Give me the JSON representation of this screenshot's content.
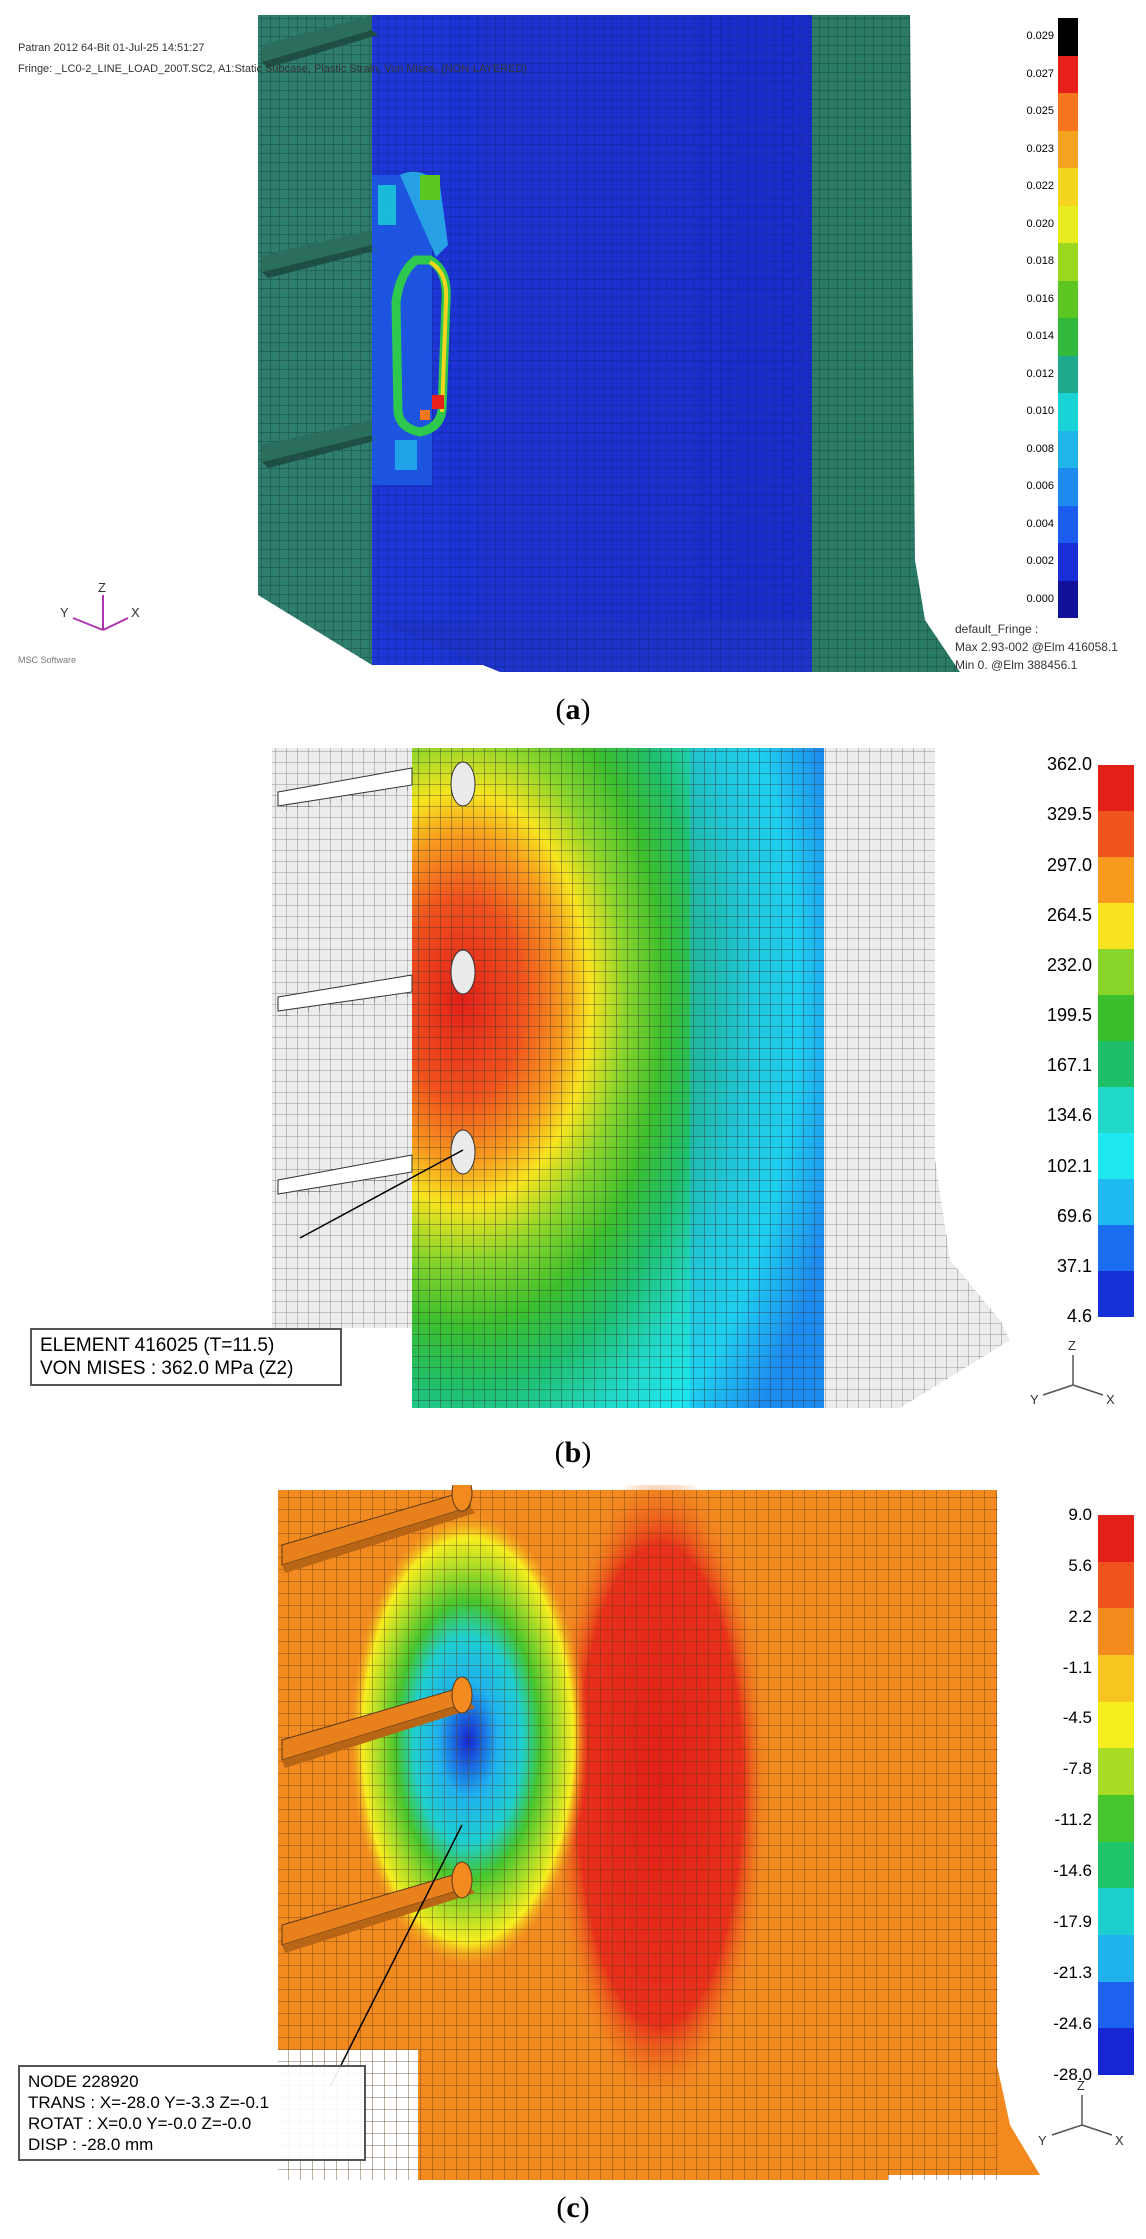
{
  "panels": [
    {
      "id": "a",
      "caption_letter": "a",
      "header": {
        "line1": "Patran 2012 64-Bit 01-Jul-25 14:51:27",
        "line2": "Fringe: _LC0-2_LINE_LOAD_200T.SC2, A1:Static Subcase, Plastic Strain, Von Mises, (NON-LAYERED)"
      },
      "footer": {
        "title": "default_Fringe :",
        "max": "Max 2.93-002 @Elm 416058.1",
        "min": "Min 0. @Elm 388456.1"
      },
      "logo_text": "MSC Software",
      "legend": {
        "labels": [
          "0.029",
          "0.027",
          "0.025",
          "0.023",
          "0.022",
          "0.020",
          "0.018",
          "0.016",
          "0.014",
          "0.012",
          "0.010",
          "0.008",
          "0.006",
          "0.004",
          "0.002",
          "0.000"
        ],
        "colors": [
          "#000000",
          "#e8201a",
          "#f5761c",
          "#f4a320",
          "#f3d51f",
          "#e6ec1e",
          "#9bd81e",
          "#5cc623",
          "#32b83a",
          "#1ea88e",
          "#18d4d7",
          "#20b6ea",
          "#1f8bf0",
          "#1c5df0",
          "#1b2fd6",
          "#11119a"
        ]
      }
    },
    {
      "id": "b",
      "caption_letter": "b",
      "info": {
        "line1": "ELEMENT 416025 (T=11.5)",
        "line2": "VON MISES : 362.0 MPa (Z2)"
      },
      "legend": {
        "labels": [
          "362.0",
          "329.5",
          "297.0",
          "264.5",
          "232.0",
          "199.5",
          "167.1",
          "134.6",
          "102.1",
          "69.6",
          "37.1",
          "4.6"
        ],
        "colors": [
          "#e22018",
          "#f0531d",
          "#f79a1e",
          "#f7e41f",
          "#8ad52b",
          "#3cbf2d",
          "#1fbf6a",
          "#20d8c8",
          "#1ee7f0",
          "#1fb9f2",
          "#1c6ef0",
          "#1630d8"
        ]
      }
    },
    {
      "id": "c",
      "caption_letter": "c",
      "info": {
        "line1": "NODE 228920",
        "line2": "TRANS : X=-28.0  Y=-3.3  Z=-0.1",
        "line3": "ROTAT : X=0.0  Y=-0.0  Z=-0.0",
        "line4": "DISP : -28.0 mm"
      },
      "legend": {
        "labels": [
          "9.0",
          "5.6",
          "2.2",
          "-1.1",
          "-4.5",
          "-7.8",
          "-11.2",
          "-14.6",
          "-17.9",
          "-21.3",
          "-24.6",
          "-28.0"
        ],
        "colors": [
          "#e22018",
          "#f0531d",
          "#f28a1f",
          "#f7c520",
          "#f7ee1f",
          "#a8dc27",
          "#45c52e",
          "#1fc56b",
          "#1ecfd0",
          "#1fb2ef",
          "#1c62ee",
          "#1526d2"
        ]
      }
    }
  ],
  "triad": {
    "x": "X",
    "y": "Y",
    "z": "Z"
  }
}
